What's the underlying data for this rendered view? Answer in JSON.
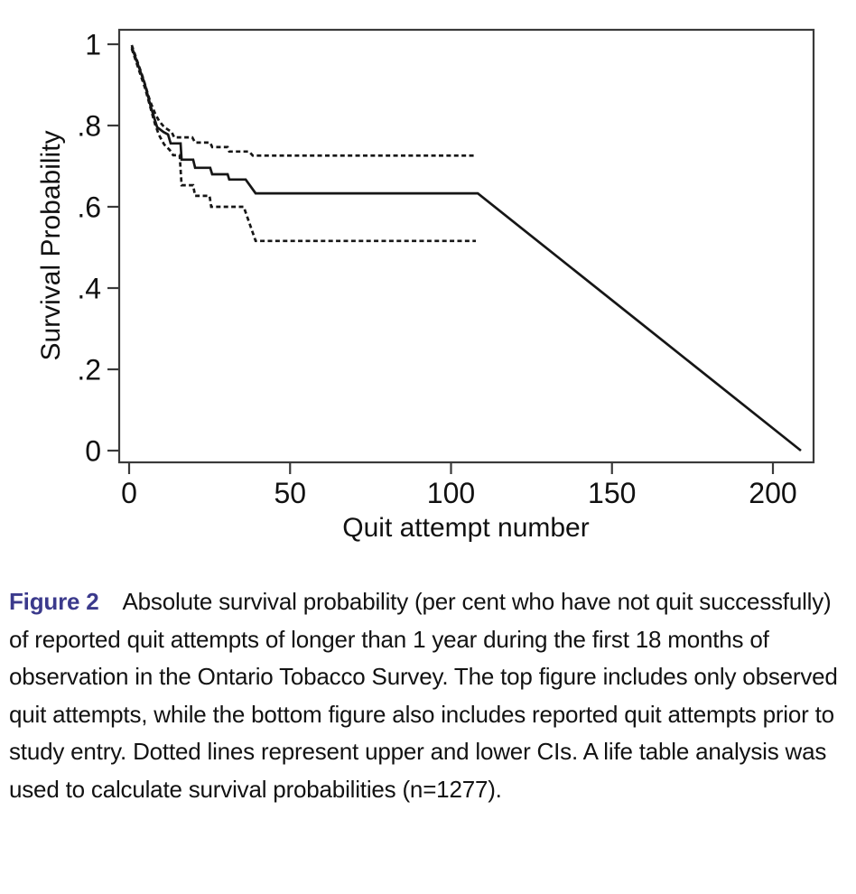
{
  "figure": {
    "caption_label": "Figure 2",
    "caption_label_color": "#3b3a8c",
    "caption_text": "Absolute survival probability (per cent who have not quit successfully) of reported quit attempts of longer than 1 year during the first 18 months of observation in the Ontario Tobacco Survey. The top figure includes only observed quit attempts, while the bottom figure also includes reported quit attempts prior to study entry. Dotted lines represent upper and lower CIs. A life table analysis was used to calculate survival probabilities (n=1277)."
  },
  "chart_data": {
    "type": "line",
    "title": "",
    "xlabel": "Quit attempt number",
    "ylabel": "Survival Probability",
    "xlim": [
      0,
      215
    ],
    "ylim": [
      0,
      1
    ],
    "x_ticks": [
      0,
      50,
      100,
      150,
      200
    ],
    "x_tick_labels": [
      "0",
      "50",
      "100",
      "150",
      "200"
    ],
    "y_ticks": [
      0,
      0.2,
      0.4,
      0.6,
      0.8,
      1
    ],
    "y_tick_labels": [
      "0",
      ".2",
      ".4",
      ".6",
      ".8",
      "1"
    ],
    "grid": false,
    "legend_position": "none",
    "line_color": "#161616",
    "series": [
      {
        "name": "survival estimate",
        "style": "solid",
        "points": [
          [
            0.8,
            0.993
          ],
          [
            4.8,
            0.904
          ],
          [
            6.7,
            0.847
          ],
          [
            7.9,
            0.816
          ],
          [
            8.7,
            0.796
          ],
          [
            10.7,
            0.784
          ],
          [
            12.1,
            0.778
          ],
          [
            12.9,
            0.756
          ],
          [
            16.0,
            0.756
          ],
          [
            16.3,
            0.716
          ],
          [
            19.9,
            0.716
          ],
          [
            20.5,
            0.696
          ],
          [
            25.2,
            0.696
          ],
          [
            25.8,
            0.68
          ],
          [
            30.6,
            0.68
          ],
          [
            31.1,
            0.667
          ],
          [
            36.2,
            0.667
          ],
          [
            39.3,
            0.633
          ],
          [
            108.3,
            0.633
          ],
          [
            208.7,
            0.0
          ]
        ]
      },
      {
        "name": "upper CI",
        "style": "dashed",
        "points": [
          [
            0.8,
            0.998
          ],
          [
            4.2,
            0.92
          ],
          [
            6.5,
            0.86
          ],
          [
            8.1,
            0.829
          ],
          [
            9.3,
            0.811
          ],
          [
            10.9,
            0.796
          ],
          [
            13.2,
            0.784
          ],
          [
            14.0,
            0.771
          ],
          [
            19.6,
            0.771
          ],
          [
            20.5,
            0.758
          ],
          [
            25.2,
            0.758
          ],
          [
            25.8,
            0.747
          ],
          [
            30.6,
            0.747
          ],
          [
            31.1,
            0.736
          ],
          [
            37.3,
            0.736
          ],
          [
            38.4,
            0.726
          ],
          [
            107.7,
            0.726
          ]
        ]
      },
      {
        "name": "lower CI",
        "style": "dashed",
        "points": [
          [
            0.8,
            0.989
          ],
          [
            5.0,
            0.891
          ],
          [
            7.0,
            0.833
          ],
          [
            8.1,
            0.802
          ],
          [
            9.3,
            0.776
          ],
          [
            10.9,
            0.753
          ],
          [
            12.6,
            0.74
          ],
          [
            13.7,
            0.727
          ],
          [
            15.7,
            0.727
          ],
          [
            16.3,
            0.653
          ],
          [
            19.9,
            0.653
          ],
          [
            20.5,
            0.627
          ],
          [
            25.0,
            0.627
          ],
          [
            25.5,
            0.6
          ],
          [
            35.6,
            0.6
          ],
          [
            39.3,
            0.516
          ],
          [
            107.7,
            0.516
          ]
        ]
      }
    ]
  }
}
